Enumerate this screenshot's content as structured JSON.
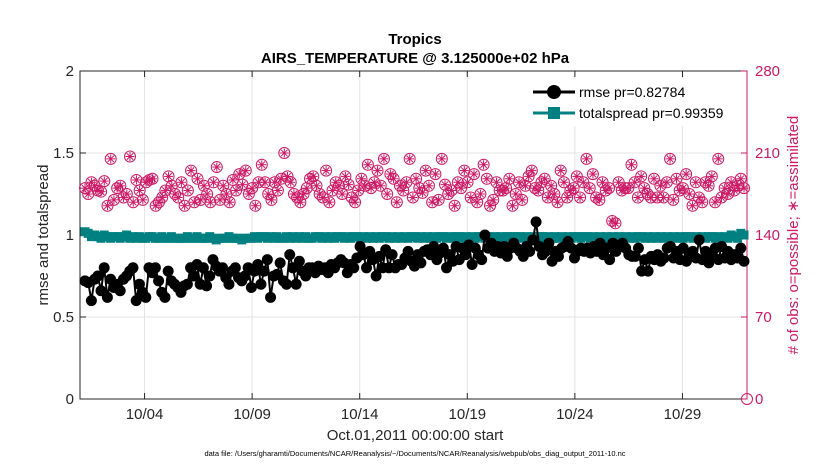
{
  "chart_data": {
    "type": "line",
    "title_line1": "Tropics",
    "title_line2": "AIRS_TEMPERATURE @ 3.125000e+02 hPa",
    "xlabel": "Oct.01,2011 00:00:00 start",
    "ylabel_left": "rmse and totalspread",
    "ylabel_right": "# of obs: o=possible; ∗=assimilated",
    "footnote": "data file: /Users/gharamti/Documents/NCAR/Reanalysis/~/Documents/NCAR/Reanalysis/webpub/obs_diag_output_2011-10.nc",
    "x_range_days": [
      1,
      32
    ],
    "xticks": [
      {
        "day": 4,
        "label": "10/04"
      },
      {
        "day": 9,
        "label": "10/09"
      },
      {
        "day": 14,
        "label": "10/14"
      },
      {
        "day": 19,
        "label": "10/19"
      },
      {
        "day": 24,
        "label": "10/24"
      },
      {
        "day": 29,
        "label": "10/29"
      }
    ],
    "ylim_left": [
      0,
      2
    ],
    "yticks_left": [
      0,
      0.5,
      1,
      1.5,
      2
    ],
    "ytick_labels_left": [
      "0",
      "0.5",
      "1",
      "1.5",
      "2"
    ],
    "ylim_right": [
      0,
      280
    ],
    "yticks_right": [
      0,
      70,
      140,
      210,
      280
    ],
    "ytick_labels_right": [
      "0",
      "70",
      "140",
      "210",
      "280"
    ],
    "grid": true,
    "legend_position": "top-right",
    "legend": [
      "rmse pr=0.82784",
      "totalspread pr=0.99359"
    ],
    "series": [
      {
        "name": "rmse pr=0.82784",
        "color": "#000000",
        "marker": "circle",
        "axis": "left",
        "values": [
          0.72,
          0.71,
          0.6,
          0.73,
          0.75,
          0.66,
          0.8,
          0.62,
          0.73,
          0.68,
          0.7,
          0.66,
          0.73,
          0.75,
          0.78,
          0.8,
          0.6,
          0.7,
          0.65,
          0.62,
          0.8,
          0.77,
          0.8,
          0.72,
          0.65,
          0.62,
          0.78,
          0.72,
          0.7,
          0.68,
          0.65,
          0.69,
          0.7,
          0.8,
          0.75,
          0.82,
          0.7,
          0.8,
          0.69,
          0.75,
          0.85,
          0.81,
          0.78,
          0.8,
          0.74,
          0.7,
          0.78,
          0.8,
          0.74,
          0.72,
          0.75,
          0.8,
          0.68,
          0.78,
          0.82,
          0.7,
          0.78,
          0.85,
          0.62,
          0.75,
          0.76,
          0.83,
          0.72,
          0.7,
          0.88,
          0.8,
          0.7,
          0.84,
          0.78,
          0.75,
          0.8,
          0.8,
          0.77,
          0.81,
          0.79,
          0.8,
          0.77,
          0.82,
          0.8,
          0.83,
          0.85,
          0.83,
          0.77,
          0.82,
          0.8,
          0.86,
          0.93,
          0.88,
          0.8,
          0.9,
          0.85,
          0.75,
          0.87,
          0.8,
          0.91,
          0.8,
          0.88,
          0.8,
          0.82,
          0.82,
          0.86,
          0.9,
          0.84,
          0.81,
          0.88,
          0.83,
          0.9,
          0.91,
          0.88,
          0.93,
          0.85,
          0.89,
          0.92,
          0.8,
          0.88,
          0.84,
          0.93,
          0.85,
          0.92,
          0.88,
          0.94,
          0.82,
          0.92,
          0.88,
          0.85,
          1.0,
          0.92,
          0.95,
          0.9,
          0.93,
          0.89,
          0.93,
          0.87,
          0.92,
          0.95,
          0.92,
          0.9,
          0.87,
          0.93,
          0.9,
          0.97,
          1.08,
          0.93,
          0.88,
          0.9,
          0.95,
          0.84,
          0.9,
          0.87,
          0.92,
          0.93,
          0.96,
          0.92,
          0.86,
          0.9,
          0.92,
          0.9,
          0.92,
          0.89,
          0.93,
          0.9,
          0.95,
          0.88,
          0.92,
          0.85,
          0.95,
          0.9,
          0.93,
          0.95,
          0.92,
          0.88,
          0.87,
          0.87,
          0.92,
          0.78,
          0.85,
          0.78,
          0.87,
          0.85,
          0.88,
          0.84,
          0.86,
          0.92,
          0.93,
          0.86,
          0.9,
          0.85,
          0.92,
          0.84,
          0.88,
          0.9,
          0.86,
          0.97,
          0.85,
          0.9,
          0.83,
          0.88,
          0.92,
          0.85,
          0.93,
          0.86,
          0.9,
          0.85,
          0.88,
          0.86,
          0.92,
          0.84
        ]
      },
      {
        "name": "totalspread pr=0.99359",
        "color": "#008080",
        "marker": "square",
        "axis": "left",
        "values": [
          1.02,
          1.01,
          0.99,
          1.0,
          0.99,
          0.98,
          1.0,
          0.99,
          0.98,
          0.99,
          0.99,
          0.98,
          0.99,
          1.0,
          0.98,
          0.99,
          0.98,
          0.99,
          0.98,
          0.98,
          0.99,
          0.99,
          0.98,
          0.98,
          0.99,
          0.98,
          0.98,
          0.99,
          0.98,
          0.98,
          0.98,
          0.98,
          0.99,
          0.98,
          0.98,
          0.99,
          0.98,
          0.98,
          0.98,
          0.99,
          0.98,
          0.97,
          0.98,
          0.98,
          0.98,
          0.99,
          0.98,
          0.98,
          0.98,
          0.97,
          0.98,
          0.98,
          0.98,
          0.99,
          0.98,
          0.99,
          0.99,
          0.98,
          0.99,
          0.98,
          0.99,
          0.98,
          0.98,
          0.99,
          0.98,
          0.99,
          0.98,
          0.99,
          0.98,
          0.99,
          0.98,
          0.98,
          0.99,
          0.99,
          0.98,
          0.99,
          0.98,
          0.99,
          0.98,
          0.99,
          0.99,
          0.98,
          0.99,
          0.98,
          0.99,
          0.99,
          0.98,
          0.99,
          0.98,
          0.99,
          0.98,
          0.99,
          0.98,
          0.99,
          0.99,
          0.98,
          0.99,
          0.98,
          0.99,
          0.98,
          0.99,
          0.98,
          0.99,
          0.99,
          0.98,
          0.99,
          0.98,
          0.99,
          0.98,
          0.99,
          0.98,
          0.99,
          0.99,
          0.98,
          0.99,
          0.98,
          0.99,
          0.99,
          0.98,
          0.99,
          0.98,
          0.99,
          0.98,
          0.99,
          0.99,
          0.98,
          0.99,
          0.98,
          0.99,
          0.98,
          0.99,
          0.98,
          0.99,
          0.99,
          0.98,
          0.99,
          0.99,
          0.98,
          0.99,
          0.98,
          0.99,
          0.98,
          0.99,
          0.99,
          0.98,
          0.99,
          0.98,
          0.99,
          0.98,
          0.99,
          0.98,
          0.99,
          0.98,
          0.99,
          0.99,
          0.98,
          0.99,
          0.99,
          0.98,
          0.99,
          0.98,
          0.99,
          0.98,
          0.99,
          0.98,
          0.99,
          0.98,
          0.99,
          0.98,
          0.99,
          0.98,
          0.99,
          0.98,
          0.99,
          0.99,
          0.98,
          0.99,
          0.98,
          0.99,
          0.98,
          0.99,
          0.98,
          0.99,
          0.98,
          0.99,
          0.98,
          0.99,
          0.98,
          0.99,
          0.99,
          0.98,
          0.99,
          0.98,
          0.99,
          0.98,
          0.99,
          0.99,
          0.98,
          0.99,
          0.98,
          0.99,
          0.98,
          1.0,
          0.99,
          0.98,
          1.01,
          1.0
        ]
      },
      {
        "name": "# of obs possible",
        "color": "#cc1a66",
        "marker": "circle-open",
        "axis": "right",
        "values": [
          180,
          175,
          185,
          182,
          178,
          177,
          186,
          165,
          205,
          170,
          180,
          182,
          172,
          175,
          207,
          168,
          187,
          178,
          170,
          185,
          187,
          188,
          165,
          168,
          172,
          178,
          190,
          182,
          175,
          172,
          185,
          165,
          178,
          195,
          168,
          188,
          170,
          182,
          175,
          168,
          185,
          198,
          170,
          182,
          175,
          168,
          187,
          178,
          192,
          183,
          195,
          175,
          180,
          165,
          185,
          200,
          185,
          175,
          170,
          185,
          178,
          188,
          210,
          190,
          185,
          175,
          172,
          168,
          175,
          180,
          188,
          190,
          182,
          175,
          172,
          195,
          168,
          178,
          185,
          182,
          175,
          190,
          183,
          172,
          168,
          178,
          188,
          182,
          200,
          180,
          185,
          195,
          182,
          205,
          175,
          192,
          188,
          168,
          182,
          178,
          185,
          205,
          172,
          188,
          180,
          176,
          195,
          182,
          168,
          192,
          170,
          205,
          183,
          175,
          178,
          165,
          185,
          180,
          195,
          185,
          172,
          192,
          168,
          175,
          200,
          188,
          165,
          170,
          185,
          178,
          178,
          180,
          188,
          165,
          175,
          185,
          170,
          182,
          190,
          195,
          180,
          178,
          185,
          188,
          172,
          182,
          175,
          168,
          195,
          185,
          172,
          178,
          180,
          190,
          172,
          185,
          205,
          180,
          192,
          172,
          170,
          185,
          178,
          180,
          152,
          150,
          185,
          178,
          180,
          180,
          200,
          185,
          172,
          190,
          180,
          175,
          172,
          188,
          172,
          182,
          172,
          185,
          205,
          170,
          188,
          178,
          180,
          192,
          175,
          165,
          185,
          172,
          168,
          185,
          182,
          190,
          168,
          205,
          172,
          180,
          175,
          185,
          178,
          182,
          188,
          180
        ],
        "values_assimilated": [
          180,
          175,
          185,
          182,
          178,
          177,
          186,
          165,
          205,
          170,
          180,
          182,
          172,
          175,
          207,
          168,
          187,
          178,
          170,
          185,
          187,
          188,
          165,
          168,
          172,
          178,
          190,
          182,
          175,
          172,
          185,
          165,
          178,
          195,
          168,
          188,
          170,
          182,
          175,
          168,
          185,
          198,
          170,
          182,
          175,
          168,
          187,
          178,
          192,
          183,
          195,
          175,
          180,
          165,
          185,
          200,
          185,
          175,
          170,
          185,
          178,
          188,
          210,
          190,
          185,
          175,
          172,
          168,
          175,
          180,
          188,
          190,
          182,
          175,
          172,
          195,
          168,
          178,
          185,
          182,
          175,
          190,
          183,
          172,
          168,
          178,
          188,
          182,
          200,
          180,
          185,
          195,
          182,
          205,
          175,
          192,
          188,
          168,
          182,
          178,
          185,
          205,
          172,
          188,
          180,
          176,
          195,
          182,
          168,
          192,
          170,
          205,
          183,
          175,
          178,
          165,
          185,
          180,
          195,
          185,
          172,
          192,
          168,
          175,
          200,
          188,
          165,
          170,
          185,
          178,
          178,
          180,
          188,
          165,
          175,
          185,
          170,
          182,
          190,
          195,
          180,
          178,
          185,
          188,
          172,
          182,
          175,
          168,
          195,
          185,
          172,
          178,
          180,
          190,
          172,
          185,
          205,
          180,
          192,
          172,
          170,
          185,
          178,
          180,
          152,
          150,
          185,
          178,
          180,
          180,
          200,
          185,
          172,
          190,
          180,
          175,
          172,
          188,
          172,
          182,
          172,
          185,
          205,
          170,
          188,
          178,
          180,
          192,
          175,
          165,
          185,
          172,
          168,
          185,
          182,
          190,
          168,
          205,
          172,
          180,
          175,
          185,
          178,
          182,
          188,
          180
        ]
      }
    ]
  }
}
